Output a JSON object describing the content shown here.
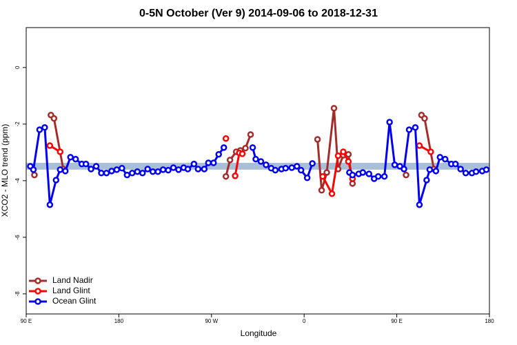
{
  "chart_data": {
    "type": "line",
    "title": "0-5N October (Ver 9)   2014-09-06 to 2018-12-31",
    "x_label": "Longitude",
    "y_label": "XCO2 - MLO trend (ppm)",
    "xlim": [
      90,
      540
    ],
    "ylim": [
      -8.71,
      1.41
    ],
    "xticks": [
      {
        "value": 90,
        "label": "90 E"
      },
      {
        "value": 180,
        "label": "180"
      },
      {
        "value": 270,
        "label": "90 W"
      },
      {
        "value": 360,
        "label": "0"
      },
      {
        "value": 450,
        "label": "90 E"
      },
      {
        "value": 540,
        "label": "180"
      }
    ],
    "yticks": [
      0,
      -2,
      -4,
      -6,
      -8
    ],
    "band": {
      "ylim": [
        -3.61,
        -3.37
      ],
      "color": "#a9bfd8"
    },
    "legend": "bottom-left",
    "series": [
      {
        "name": "Land Nadir",
        "color": "#a52a2a",
        "x": [
          98,
          null,
          114,
          117,
          126,
          null,
          284,
          288,
          294,
          298,
          303,
          308,
          null,
          373,
          377,
          382,
          389,
          393,
          398,
          403,
          407,
          null,
          459,
          null,
          474,
          477,
          486
        ],
        "values": [
          -3.8,
          null,
          -1.68,
          -1.8,
          -3.59,
          null,
          -3.85,
          -3.27,
          -2.98,
          -2.93,
          -2.85,
          -2.37,
          null,
          -2.54,
          -4.34,
          -3.71,
          -1.44,
          -3.59,
          -3.1,
          -3.07,
          -4.1,
          null,
          -3.8,
          null,
          -1.68,
          -1.8,
          -3.59
        ]
      },
      {
        "name": "Land Glint",
        "color": "#ff0000",
        "x": [
          113,
          123,
          null,
          284,
          null,
          293,
          297,
          300,
          null,
          378,
          387,
          393,
          398,
          403,
          407,
          null,
          472,
          483
        ],
        "values": [
          -2.76,
          -2.98,
          null,
          -2.51,
          null,
          -3.83,
          -3.02,
          -3.05,
          null,
          -3.85,
          -4.46,
          -3.12,
          -2.98,
          -3.32,
          -3.93,
          null,
          -2.76,
          -2.98
        ]
      },
      {
        "name": "Ocean Glint",
        "color": "#0000ee",
        "x": [
          94,
          97,
          103,
          108,
          113,
          119,
          123,
          128,
          133,
          138,
          144,
          148,
          153,
          158,
          163,
          168,
          173,
          178,
          183,
          188,
          193,
          198,
          203,
          208,
          213,
          218,
          223,
          228,
          233,
          238,
          243,
          247,
          253,
          257,
          263,
          267,
          272,
          277,
          282,
          null,
          310,
          313,
          318,
          323,
          328,
          332,
          338,
          342,
          348,
          353,
          357,
          363,
          368,
          null,
          404,
          407,
          413,
          417,
          423,
          428,
          432,
          438,
          443,
          448,
          453,
          457,
          462,
          468,
          472,
          479,
          482,
          488,
          492,
          497,
          503,
          507,
          512,
          517,
          523,
          527,
          533,
          537
        ],
        "values": [
          -3.49,
          -3.61,
          -2.2,
          -2.12,
          -4.85,
          -3.98,
          -3.61,
          -3.66,
          -3.17,
          -3.24,
          -3.41,
          -3.41,
          -3.59,
          -3.49,
          -3.73,
          -3.73,
          -3.66,
          -3.61,
          -3.56,
          -3.8,
          -3.73,
          -3.68,
          -3.73,
          -3.59,
          -3.68,
          -3.68,
          -3.61,
          -3.63,
          -3.54,
          -3.61,
          -3.54,
          -3.59,
          -3.41,
          -3.59,
          -3.59,
          -3.37,
          -3.37,
          -3.07,
          -2.83,
          null,
          -2.83,
          -3.24,
          -3.32,
          -3.44,
          -3.56,
          -3.63,
          -3.59,
          -3.56,
          -3.54,
          -3.49,
          -3.63,
          -3.9,
          -3.39,
          null,
          -3.71,
          -3.8,
          -3.76,
          -3.71,
          -3.76,
          -3.93,
          -3.85,
          -3.85,
          -1.93,
          -3.44,
          -3.49,
          -3.59,
          -2.2,
          -2.12,
          -4.85,
          -3.98,
          -3.61,
          -3.66,
          -3.17,
          -3.24,
          -3.41,
          -3.41,
          -3.59,
          -3.73,
          -3.73,
          -3.68,
          -3.66,
          -3.61
        ]
      }
    ]
  }
}
